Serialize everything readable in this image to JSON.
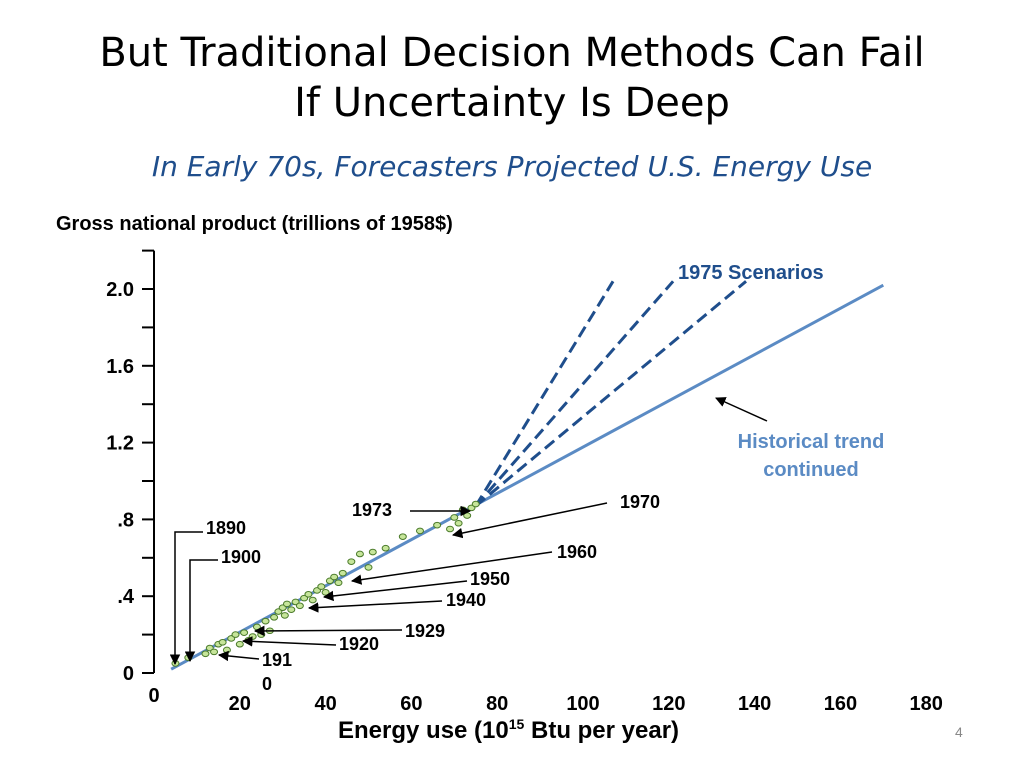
{
  "slide": {
    "title_line1": "But Traditional Decision Methods Can Fail",
    "title_line2": "If Uncertainty Is Deep",
    "subtitle": "In Early 70s, Forecasters Projected U.S. Energy Use",
    "page_number": "4"
  },
  "chart_data": {
    "type": "scatter",
    "ylabel": "Gross national product (trillions of 1958$)",
    "xlabel_main": "Energy use (10",
    "xlabel_sup": "15",
    "xlabel_tail": " Btu per year)",
    "xlim": [
      0,
      180
    ],
    "ylim": [
      0,
      2.2
    ],
    "x_ticks": [
      {
        "value": 0,
        "label": "0"
      },
      {
        "value": 20,
        "label": "20"
      },
      {
        "value": 40,
        "label": "40"
      },
      {
        "value": 60,
        "label": "60"
      },
      {
        "value": 80,
        "label": "80"
      },
      {
        "value": 100,
        "label": "100"
      },
      {
        "value": 120,
        "label": "120"
      },
      {
        "value": 140,
        "label": "140"
      },
      {
        "value": 160,
        "label": "160"
      },
      {
        "value": 180,
        "label": "180"
      }
    ],
    "y_ticks": [
      {
        "value": 0,
        "label": "0"
      },
      {
        "value": 0.4,
        "label": ".4"
      },
      {
        "value": 0.8,
        "label": ".8"
      },
      {
        "value": 1.2,
        "label": "1.2"
      },
      {
        "value": 1.6,
        "label": "1.6"
      },
      {
        "value": 2.0,
        "label": "2.0"
      }
    ],
    "y_minor_ticks": [
      0.2,
      0.6,
      1.0,
      1.4,
      1.8,
      2.2
    ],
    "colors": {
      "trend": "#5b8bc4",
      "scenario": "#1f4e8c",
      "point_fill": "#c6e59a",
      "point_stroke": "#4a7a2a",
      "annotation": "#000000"
    },
    "points": [
      {
        "x": 5,
        "y": 0.05
      },
      {
        "x": 8,
        "y": 0.08
      },
      {
        "x": 12,
        "y": 0.1
      },
      {
        "x": 13,
        "y": 0.13
      },
      {
        "x": 14,
        "y": 0.11
      },
      {
        "x": 15,
        "y": 0.15
      },
      {
        "x": 16,
        "y": 0.16
      },
      {
        "x": 17,
        "y": 0.12
      },
      {
        "x": 18,
        "y": 0.18
      },
      {
        "x": 19,
        "y": 0.2
      },
      {
        "x": 20,
        "y": 0.15
      },
      {
        "x": 21,
        "y": 0.21
      },
      {
        "x": 22,
        "y": 0.17
      },
      {
        "x": 23,
        "y": 0.19
      },
      {
        "x": 24,
        "y": 0.24
      },
      {
        "x": 25,
        "y": 0.2
      },
      {
        "x": 26,
        "y": 0.27
      },
      {
        "x": 27,
        "y": 0.22
      },
      {
        "x": 28,
        "y": 0.29
      },
      {
        "x": 29,
        "y": 0.32
      },
      {
        "x": 30,
        "y": 0.34
      },
      {
        "x": 30.5,
        "y": 0.3
      },
      {
        "x": 31,
        "y": 0.36
      },
      {
        "x": 32,
        "y": 0.33
      },
      {
        "x": 33,
        "y": 0.37
      },
      {
        "x": 34,
        "y": 0.35
      },
      {
        "x": 35,
        "y": 0.39
      },
      {
        "x": 36,
        "y": 0.41
      },
      {
        "x": 37,
        "y": 0.38
      },
      {
        "x": 38,
        "y": 0.43
      },
      {
        "x": 39,
        "y": 0.45
      },
      {
        "x": 40,
        "y": 0.42
      },
      {
        "x": 41,
        "y": 0.48
      },
      {
        "x": 42,
        "y": 0.5
      },
      {
        "x": 43,
        "y": 0.47
      },
      {
        "x": 44,
        "y": 0.52
      },
      {
        "x": 46,
        "y": 0.58
      },
      {
        "x": 48,
        "y": 0.62
      },
      {
        "x": 50,
        "y": 0.55
      },
      {
        "x": 51,
        "y": 0.63
      },
      {
        "x": 54,
        "y": 0.65
      },
      {
        "x": 58,
        "y": 0.71
      },
      {
        "x": 62,
        "y": 0.74
      },
      {
        "x": 66,
        "y": 0.77
      },
      {
        "x": 69,
        "y": 0.75
      },
      {
        "x": 70,
        "y": 0.81
      },
      {
        "x": 71,
        "y": 0.78
      },
      {
        "x": 72,
        "y": 0.85
      },
      {
        "x": 73,
        "y": 0.82
      },
      {
        "x": 74,
        "y": 0.86
      },
      {
        "x": 75,
        "y": 0.88
      }
    ],
    "historical_trend": {
      "x": [
        4,
        170
      ],
      "y": [
        0.02,
        2.02
      ]
    },
    "scenarios": [
      {
        "x": [
          75,
          107
        ],
        "y": [
          0.87,
          2.04
        ]
      },
      {
        "x": [
          75,
          121
        ],
        "y": [
          0.87,
          2.04
        ]
      },
      {
        "x": [
          75,
          138
        ],
        "y": [
          0.87,
          2.04
        ]
      }
    ],
    "annotations": {
      "scenarios_label": "1975 Scenarios",
      "trend_label_line1": "Historical trend",
      "trend_label_line2": "continued",
      "year_1973": "1973",
      "year_1970": "1970",
      "year_1960": "1960",
      "year_1950": "1950",
      "year_1940": "1940",
      "year_1929": "1929",
      "year_1920": "1920",
      "year_1910_line1": "191",
      "year_1910_line2": "0",
      "year_1890": "1890",
      "year_1900": "1900"
    }
  }
}
